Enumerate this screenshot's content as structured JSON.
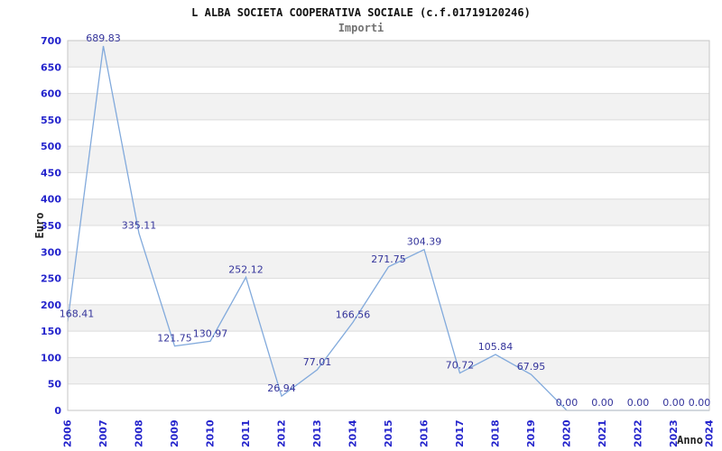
{
  "chart_data": {
    "type": "line",
    "title": "L ALBA SOCIETA COOPERATIVA SOCIALE (c.f.01719120246)",
    "subtitle": "Importi",
    "xlabel": "Anno",
    "ylabel": "Euro",
    "categories": [
      "2006",
      "2007",
      "2008",
      "2009",
      "2010",
      "2011",
      "2012",
      "2013",
      "2014",
      "2015",
      "2016",
      "2017",
      "2018",
      "2019",
      "2020",
      "2021",
      "2022",
      "2023",
      "2024"
    ],
    "values": [
      168.41,
      689.83,
      335.11,
      121.75,
      130.97,
      252.12,
      26.94,
      77.01,
      166.56,
      271.75,
      304.39,
      70.72,
      105.84,
      67.95,
      0,
      0,
      0,
      0,
      0
    ],
    "labels": [
      "168.41",
      "689.83",
      "335.11",
      "121.75",
      "130.97",
      "252.12",
      "26.94",
      "77.01",
      "166.56",
      "271.75",
      "304.39",
      "70.72",
      "105.84",
      "67.95",
      "0.00",
      "0.00",
      "0.00",
      "0.00",
      "0.00"
    ],
    "ylim": [
      0,
      700
    ],
    "ytick_step": 50,
    "grid": "horizontal-alternating-bands",
    "legend": "none",
    "colors": {
      "line": "#82aadc",
      "band": "#f2f2f2",
      "gridline": "#dcdcdc",
      "border": "#c6c6c6",
      "tick_label": "#2424cc",
      "data_label": "#34349b",
      "axis_title": "#222222"
    }
  }
}
